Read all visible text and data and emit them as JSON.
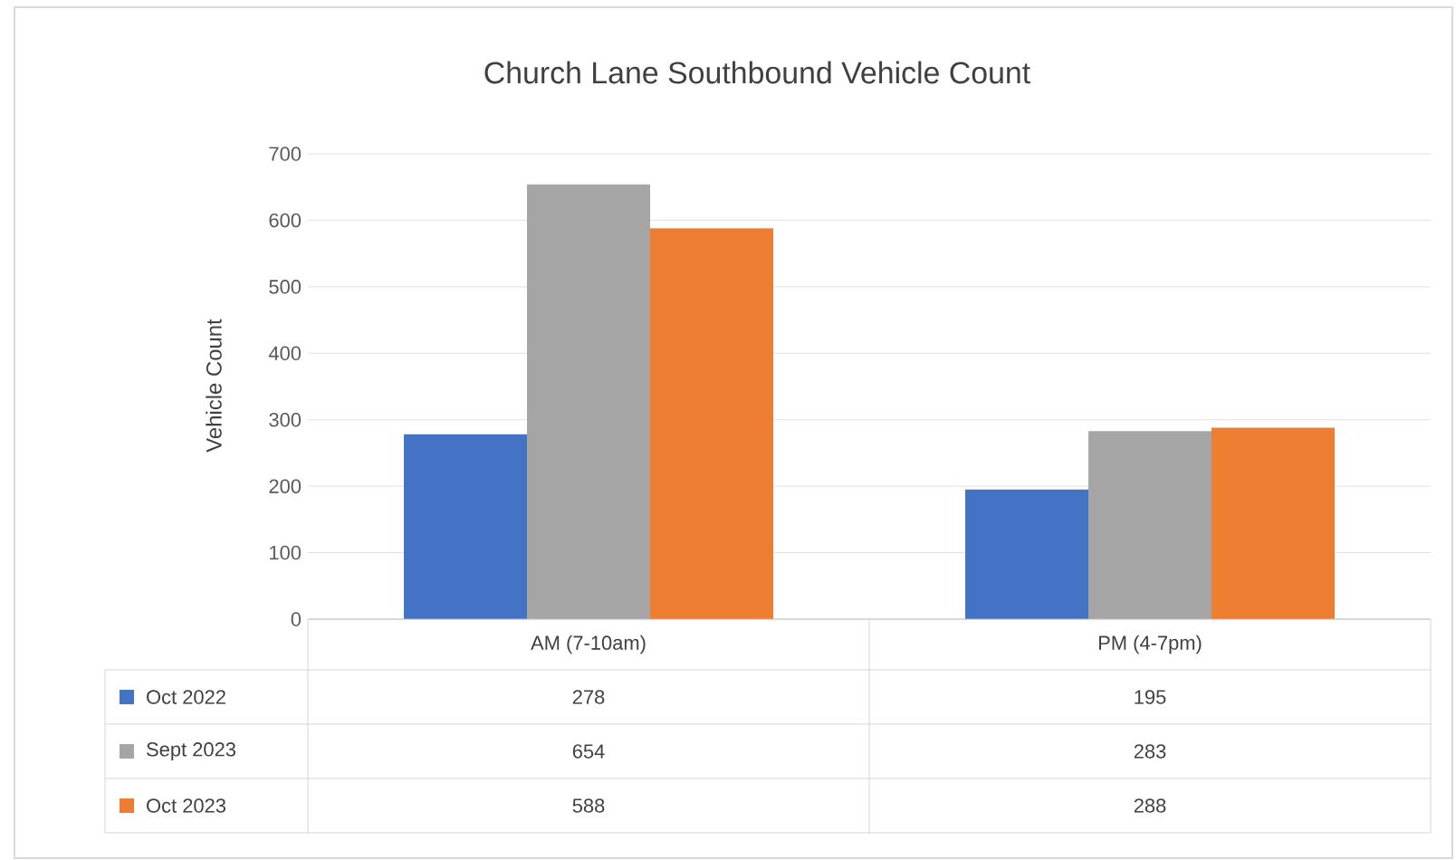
{
  "chart_data": {
    "type": "bar",
    "title": "Church Lane Southbound Vehicle Count",
    "ylabel": "Vehicle Count",
    "categories": [
      "AM (7-10am)",
      "PM (4-7pm)"
    ],
    "series": [
      {
        "name": "Oct 2022",
        "color": "#4472c4",
        "values": [
          278,
          195
        ]
      },
      {
        "name": "Sept 2023",
        "color": "#a5a5a5",
        "values": [
          654,
          283
        ]
      },
      {
        "name": "Oct 2023",
        "color": "#ed7d31",
        "values": [
          588,
          288
        ]
      }
    ],
    "ylim": [
      0,
      700
    ],
    "yticks": [
      0,
      100,
      200,
      300,
      400,
      500,
      600,
      700
    ],
    "grid": "y",
    "legend": "bottom",
    "data_labels": true
  }
}
